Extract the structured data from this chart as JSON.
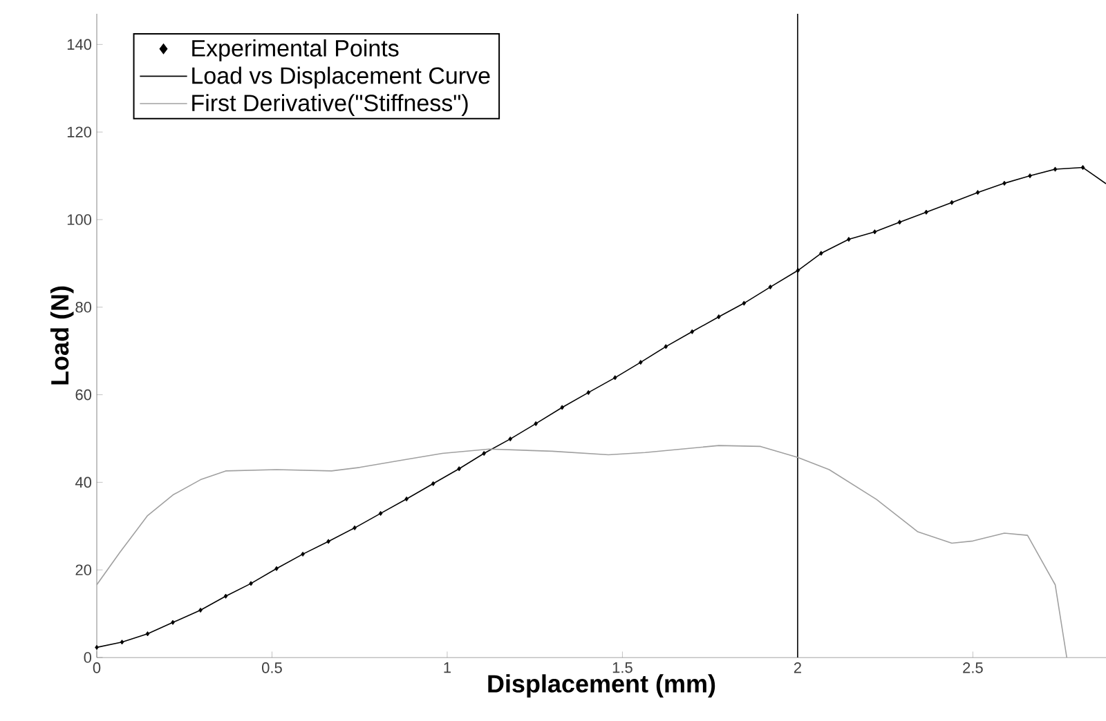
{
  "chart_data": {
    "type": "line",
    "xlabel": "Displacement (mm)",
    "ylabel": "Load (N)",
    "xlim": [
      0,
      2.88
    ],
    "ylim": [
      0,
      147
    ],
    "xticks": [
      0,
      0.5,
      1,
      1.5,
      2,
      2.5
    ],
    "yticks": [
      0,
      20,
      40,
      60,
      80,
      100,
      120,
      140
    ],
    "grid": false,
    "legend": "top left",
    "ref_lines": [
      {
        "axis": "x",
        "value": 2,
        "color": "#000000"
      }
    ],
    "series": [
      {
        "name": "Experimental Points",
        "type": "scatter",
        "marker": "diamond",
        "color": "#000000",
        "x": [
          0,
          0.072,
          0.145,
          0.217,
          0.296,
          0.368,
          0.44,
          0.513,
          0.588,
          0.661,
          0.736,
          0.81,
          0.884,
          0.96,
          1.034,
          1.105,
          1.18,
          1.253,
          1.328,
          1.403,
          1.479,
          1.552,
          1.624,
          1.699,
          1.775,
          1.847,
          1.922,
          2.001,
          2.067,
          2.146,
          2.22,
          2.291,
          2.367,
          2.44,
          2.514,
          2.59,
          2.663,
          2.735,
          2.814
        ],
        "values": [
          2.3,
          3.5,
          5.4,
          8.0,
          10.8,
          14.0,
          16.9,
          20.3,
          23.6,
          26.5,
          29.6,
          32.9,
          36.2,
          39.7,
          43.1,
          46.6,
          49.9,
          53.4,
          57.1,
          60.5,
          63.9,
          67.4,
          71.0,
          74.4,
          77.8,
          80.9,
          84.6,
          88.4,
          92.3,
          95.5,
          97.2,
          99.4,
          101.7,
          103.9,
          106.2,
          108.3,
          110.0,
          111.5,
          111.9
        ]
      },
      {
        "name": "Load vs Displacement Curve",
        "line_style": "solid",
        "color": "#000000",
        "x": [
          0,
          0.072,
          0.145,
          0.217,
          0.296,
          0.368,
          0.44,
          0.513,
          0.588,
          0.661,
          0.736,
          0.81,
          0.884,
          0.96,
          1.034,
          1.105,
          1.18,
          1.253,
          1.328,
          1.403,
          1.479,
          1.552,
          1.624,
          1.699,
          1.775,
          1.847,
          1.922,
          2.001,
          2.067,
          2.146,
          2.22,
          2.291,
          2.367,
          2.44,
          2.514,
          2.59,
          2.663,
          2.735,
          2.814,
          2.88
        ],
        "values": [
          2.3,
          3.5,
          5.4,
          8.0,
          10.8,
          14.0,
          16.9,
          20.3,
          23.6,
          26.5,
          29.6,
          32.9,
          36.2,
          39.7,
          43.1,
          46.6,
          49.9,
          53.4,
          57.1,
          60.5,
          63.9,
          67.4,
          71.0,
          74.4,
          77.8,
          80.9,
          84.6,
          88.4,
          92.3,
          95.5,
          97.2,
          99.4,
          101.7,
          103.9,
          106.2,
          108.3,
          110.0,
          111.5,
          111.9,
          108.2
        ]
      },
      {
        "name": "First Derivative(\"Stiffness\")",
        "line_style": "solid",
        "color": "#a0a0a0",
        "x": [
          0,
          0.066,
          0.145,
          0.217,
          0.296,
          0.368,
          0.513,
          0.67,
          0.75,
          0.88,
          0.986,
          1.12,
          1.3,
          1.46,
          1.565,
          1.775,
          1.894,
          2.0,
          2.09,
          2.225,
          2.343,
          2.44,
          2.5,
          2.59,
          2.656,
          2.735,
          2.768
        ],
        "values": [
          16.6,
          24.0,
          32.4,
          37.1,
          40.6,
          42.6,
          42.9,
          42.6,
          43.4,
          45.2,
          46.6,
          47.6,
          47.1,
          46.3,
          46.8,
          48.4,
          48.2,
          45.7,
          42.9,
          36.1,
          28.7,
          26.1,
          26.6,
          28.4,
          27.9,
          16.6,
          0
        ]
      }
    ]
  }
}
